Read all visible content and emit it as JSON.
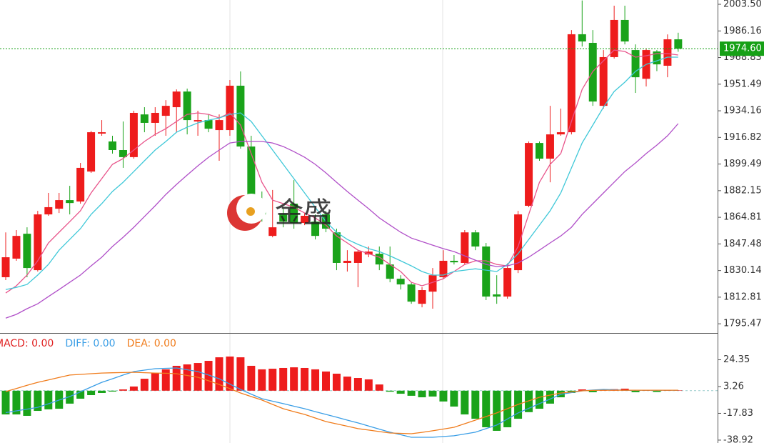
{
  "chart_data": [
    {
      "type": "candlestick",
      "up_color": "#ee1c1c",
      "down_color": "#1aa31a",
      "open": [
        1825.8,
        1837.9,
        1854.1,
        1830.4,
        1866.7,
        1870.4,
        1876.0,
        1875.1,
        1894.6,
        1919.3,
        1914.2,
        1908.6,
        1904.0,
        1931.8,
        1926.3,
        1930.9,
        1936.5,
        1946.7,
        1927.2,
        1928.1,
        1921.6,
        1921.6,
        1950.5,
        1910.9,
        1871.4,
        1852.7,
        1866.7,
        1873.7,
        1861.1,
        1862.0,
        1866.7,
        1855.0,
        1835.1,
        1835.1,
        1840.6,
        1841.1,
        1834.1,
        1824.8,
        1821.1,
        1808.5,
        1816.4,
        1825.8,
        1836.5,
        1835.1,
        1855.0,
        1845.8,
        1814.6,
        1813.2,
        1830.4,
        1872.3,
        1913.2,
        1903.0,
        1918.8,
        1920.2,
        1984.0,
        1978.4,
        1937.4,
        1969.1,
        1993.3,
        1973.7,
        1955.0,
        1972.8,
        1963.5,
        1980.7
      ],
      "high": [
        1855.0,
        1856.5,
        1858.3,
        1869.0,
        1880.7,
        1880.7,
        1885.3,
        1900.2,
        1921.1,
        1928.1,
        1917.9,
        1927.2,
        1934.2,
        1936.5,
        1936.5,
        1941.1,
        1948.1,
        1948.6,
        1934.2,
        1931.8,
        1931.8,
        1954.2,
        1959.8,
        1917.9,
        1881.6,
        1882.6,
        1870.4,
        1889.0,
        1867.6,
        1866.7,
        1869.0,
        1857.4,
        1843.4,
        1843.4,
        1845.8,
        1845.8,
        1845.8,
        1827.1,
        1822.5,
        1819.3,
        1831.8,
        1843.4,
        1840.2,
        1856.5,
        1856.5,
        1848.1,
        1827.1,
        1834.8,
        1869.0,
        1914.2,
        1914.2,
        1937.4,
        1935.6,
        1986.7,
        2006.0,
        1986.7,
        1973.7,
        2002.6,
        2002.6,
        1977.4,
        1974.6,
        1973.7,
        1983.9,
        1985.0
      ],
      "low": [
        1823.9,
        1836.5,
        1825.8,
        1829.5,
        1865.8,
        1867.6,
        1866.7,
        1873.7,
        1893.7,
        1917.9,
        1906.3,
        1897.0,
        1903.0,
        1920.2,
        1917.9,
        1917.9,
        1920.2,
        1918.8,
        1917.9,
        1920.2,
        1901.6,
        1917.9,
        1909.5,
        1864.4,
        1862.0,
        1851.8,
        1858.3,
        1857.4,
        1859.7,
        1850.4,
        1855.1,
        1830.4,
        1829.5,
        1819.3,
        1838.8,
        1830.4,
        1822.5,
        1817.8,
        1808.5,
        1806.2,
        1805.3,
        1824.8,
        1834.1,
        1834.1,
        1843.4,
        1810.9,
        1808.5,
        1811.8,
        1828.5,
        1871.4,
        1901.6,
        1887.6,
        1917.9,
        1918.8,
        1976.0,
        1937.4,
        1935.6,
        1968.2,
        1977.4,
        1945.8,
        1950.0,
        1960.0,
        1956.0,
        1972.6
      ],
      "close": [
        1838.8,
        1852.7,
        1831.8,
        1866.7,
        1871.4,
        1876.0,
        1874.1,
        1897.0,
        1920.2,
        1920.2,
        1908.6,
        1904.0,
        1932.8,
        1926.3,
        1932.8,
        1937.4,
        1946.7,
        1928.1,
        1928.1,
        1922.5,
        1928.1,
        1950.5,
        1910.9,
        1866.7,
        1866.7,
        1858.3,
        1862.0,
        1861.1,
        1865.8,
        1852.7,
        1857.4,
        1835.1,
        1836.5,
        1842.5,
        1842.5,
        1834.1,
        1824.8,
        1821.1,
        1809.9,
        1817.4,
        1827.1,
        1836.5,
        1835.5,
        1855.0,
        1845.8,
        1813.2,
        1813.2,
        1831.8,
        1866.7,
        1913.2,
        1903.0,
        1918.8,
        1920.2,
        1984.0,
        1979.3,
        1940.2,
        1969.1,
        1993.3,
        1979.3,
        1956.0,
        1973.7,
        1964.4,
        1980.7,
        1974.6
      ],
      "series": [
        {
          "color": "#e8538a",
          "values": [
            1815.5,
            1820.2,
            1827.2,
            1836.5,
            1848.1,
            1855.1,
            1862.0,
            1869.0,
            1880.7,
            1890.0,
            1899.3,
            1903.0,
            1908.6,
            1914.2,
            1918.8,
            1922.5,
            1927.2,
            1931.8,
            1932.8,
            1931.8,
            1929.5,
            1932.8,
            1924.9,
            1906.3,
            1887.6,
            1876.0,
            1873.7,
            1871.4,
            1867.6,
            1864.4,
            1859.7,
            1852.7,
            1848.1,
            1843.4,
            1841.1,
            1838.8,
            1834.1,
            1829.5,
            1822.5,
            1820.2,
            1822.5,
            1824.8,
            1829.5,
            1834.1,
            1836.5,
            1836.5,
            1834.1,
            1833.2,
            1845.8,
            1866.7,
            1887.6,
            1899.3,
            1906.3,
            1927.2,
            1948.1,
            1959.8,
            1966.7,
            1973.7,
            1972.8,
            1969.1,
            1970.0,
            1971.4,
            1971.4,
            1970.5
          ]
        },
        {
          "color": "#3fc8d8",
          "values": [
            1817.8,
            1819.2,
            1821.1,
            1827.2,
            1834.1,
            1843.4,
            1850.4,
            1857.4,
            1866.7,
            1873.7,
            1881.6,
            1887.6,
            1894.6,
            1901.6,
            1908.6,
            1914.2,
            1920.2,
            1923.5,
            1926.3,
            1928.1,
            1929.5,
            1931.8,
            1932.8,
            1927.2,
            1917.9,
            1908.6,
            1899.3,
            1890.0,
            1880.7,
            1871.4,
            1862.0,
            1855.1,
            1850.4,
            1847.2,
            1844.4,
            1842.5,
            1839.7,
            1836.5,
            1833.2,
            1829.5,
            1827.2,
            1827.2,
            1829.5,
            1830.4,
            1831.3,
            1830.4,
            1829.5,
            1834.1,
            1841.1,
            1850.4,
            1859.7,
            1869.0,
            1880.7,
            1896.9,
            1913.2,
            1924.9,
            1936.5,
            1946.7,
            1952.8,
            1959.8,
            1964.4,
            1966.7,
            1969.1,
            1969.1
          ]
        },
        {
          "color": "#b04fc8",
          "values": [
            1799.2,
            1801.6,
            1805.3,
            1808.5,
            1813.2,
            1817.8,
            1822.5,
            1827.2,
            1833.2,
            1838.8,
            1845.8,
            1851.8,
            1858.3,
            1865.3,
            1872.3,
            1879.7,
            1886.2,
            1892.3,
            1898.3,
            1903.9,
            1908.6,
            1913.2,
            1914.2,
            1914.2,
            1914.2,
            1913.2,
            1910.9,
            1907.6,
            1903.9,
            1899.3,
            1893.7,
            1887.6,
            1881.6,
            1876.0,
            1870.4,
            1864.4,
            1859.7,
            1855.1,
            1851.3,
            1849.0,
            1846.7,
            1844.4,
            1842.5,
            1839.7,
            1836.9,
            1834.1,
            1832.7,
            1833.2,
            1835.1,
            1838.8,
            1843.4,
            1848.1,
            1852.7,
            1858.3,
            1866.7,
            1873.7,
            1880.7,
            1887.6,
            1894.6,
            1900.2,
            1906.3,
            1911.8,
            1917.9,
            1925.8
          ]
        }
      ],
      "last_price": {
        "value": 1974.6,
        "label": "1974.60"
      },
      "last_price_color": "#16a016",
      "ylim": [
        1789.5,
        2006.3
      ],
      "yticks": [
        {
          "value": 2003.5,
          "label": "2003.50"
        },
        1986.16,
        1968.83,
        1951.49,
        1934.16,
        1916.82,
        1899.49,
        1882.15,
        1864.81,
        1847.48,
        1830.14,
        1812.81,
        1795.47
      ],
      "watermark": "金盛"
    },
    {
      "type": "macd",
      "up_color": "#ee1c1c",
      "down_color": "#1aa31a",
      "legend": [
        {
          "text": "MACD: 0.00",
          "color": "#e02020"
        },
        {
          "text": "DIFF: 0.00",
          "color": "#3a9ee6"
        },
        {
          "text": "DEA: 0.00",
          "color": "#f07c1c"
        }
      ],
      "values": [
        -18.7,
        -18.7,
        -19.8,
        -15.9,
        -14.7,
        -14.2,
        -10.2,
        -6.3,
        -3.5,
        -1.8,
        -0.7,
        1.0,
        3.3,
        9.4,
        13.9,
        16.8,
        19.6,
        20.7,
        21.8,
        23.5,
        26.3,
        26.9,
        26.3,
        19.6,
        16.8,
        17.3,
        17.9,
        18.4,
        17.9,
        16.8,
        15.1,
        13.4,
        11.1,
        10.0,
        8.9,
        4.9,
        -0.8,
        -2.4,
        -4.0,
        -5.2,
        -4.6,
        -8.5,
        -12.5,
        -18.7,
        -22.1,
        -28.8,
        -31.6,
        -28.8,
        -22.1,
        -16.9,
        -14.2,
        -10.2,
        -5.2,
        -1.8,
        1.0,
        -1.2,
        0.6,
        1.2,
        1.6,
        -1.2,
        0.5,
        -1.0,
        0.4,
        0.3
      ],
      "series": [
        {
          "color": "#3a9ee6",
          "values": [
            -17.3,
            -15.9,
            -14.5,
            -13.1,
            -10.3,
            -7.4,
            -4.6,
            -0.9,
            2.9,
            6.6,
            9.4,
            12.3,
            15.1,
            16.2,
            17.3,
            17.6,
            17.9,
            16.5,
            15.1,
            12.3,
            9.4,
            5.2,
            1.0,
            -2.7,
            -6.3,
            -8.3,
            -10.2,
            -12.2,
            -14.2,
            -16.5,
            -18.7,
            -20.9,
            -23.2,
            -25.4,
            -27.8,
            -30.3,
            -32.7,
            -34.7,
            -36.7,
            -36.7,
            -36.7,
            -36.1,
            -35.5,
            -34.1,
            -32.7,
            -29.9,
            -27.1,
            -22.3,
            -17.5,
            -13.9,
            -10.2,
            -6.6,
            -2.9,
            -1.5,
            -0.1,
            0.5,
            1.0,
            0.7,
            0.4,
            0.4,
            0.4,
            0.4,
            0.4,
            0.4
          ]
        },
        {
          "color": "#f07c1c",
          "values": [
            -0.7,
            1.7,
            4.2,
            6.6,
            8.5,
            10.4,
            12.3,
            12.8,
            13.4,
            13.9,
            14.1,
            14.3,
            14.5,
            14.2,
            13.9,
            13.7,
            13.4,
            12.0,
            10.6,
            7.8,
            4.9,
            1.6,
            -1.8,
            -4.6,
            -7.4,
            -10.8,
            -14.2,
            -16.5,
            -18.7,
            -21.5,
            -24.3,
            -26.2,
            -28.0,
            -29.9,
            -31.0,
            -32.2,
            -33.3,
            -33.6,
            -33.9,
            -32.8,
            -31.6,
            -30.2,
            -28.8,
            -26.0,
            -23.2,
            -20.4,
            -17.5,
            -14.2,
            -10.8,
            -8.0,
            -5.2,
            -3.5,
            -1.8,
            -1.0,
            -0.1,
            0.2,
            0.4,
            0.4,
            0.4,
            0.4,
            0.4,
            0.4,
            0.4,
            0.4
          ]
        }
      ],
      "ylim": [
        -41.2,
        44.9
      ],
      "yticks": [
        24.35,
        3.26,
        -17.83,
        -38.92
      ]
    }
  ]
}
